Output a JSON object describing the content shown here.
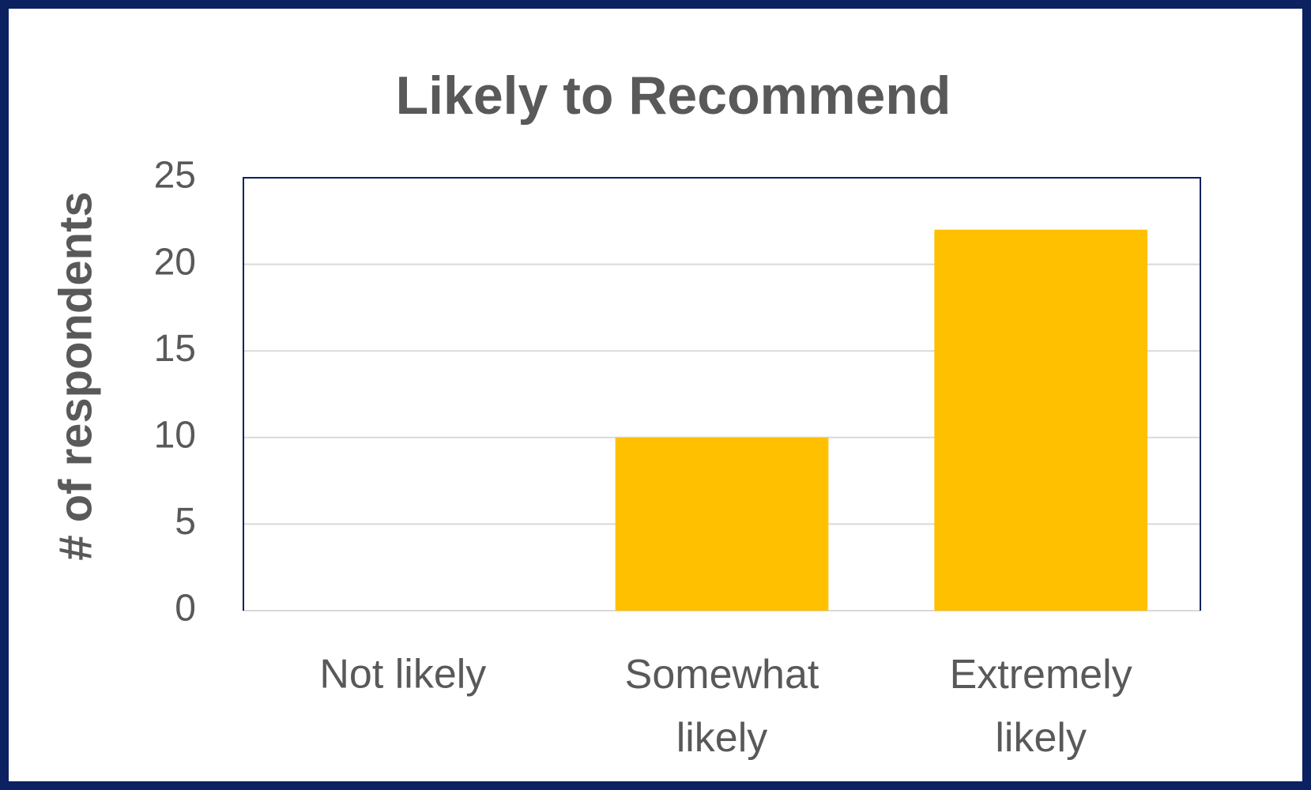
{
  "chart_data": {
    "type": "bar",
    "title": "Likely to Recommend",
    "y_label": "# of respondents",
    "categories": [
      "Not likely",
      "Somewhat likely",
      "Extremely likely"
    ],
    "values": [
      0,
      10,
      22
    ],
    "color": "#FFC000",
    "ylim": [
      0,
      25
    ],
    "yticks": [
      0,
      5,
      10,
      15,
      20,
      25
    ],
    "grid": true
  }
}
